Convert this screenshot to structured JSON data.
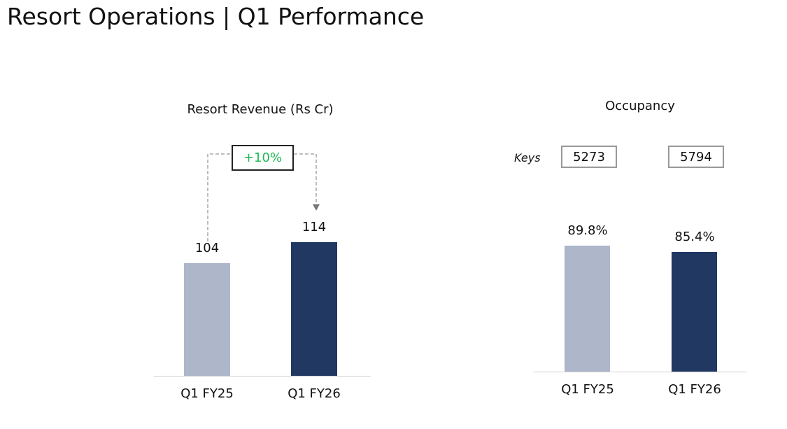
{
  "title": "Resort Operations | Q1 Performance",
  "chart_data": [
    {
      "type": "bar",
      "title": "Resort Revenue (Rs Cr)",
      "categories": [
        "Q1 FY25",
        "Q1 FY26"
      ],
      "values": [
        104,
        114
      ],
      "value_labels": [
        "104",
        "114"
      ],
      "colors": [
        "#adb7c9",
        "#213862"
      ],
      "ylim": [
        50,
        120
      ],
      "annotation": {
        "label": "+10%",
        "color": "#1db954",
        "from": "Q1 FY25",
        "to": "Q1 FY26"
      }
    },
    {
      "type": "bar",
      "title": "Occupancy",
      "categories": [
        "Q1 FY25",
        "Q1 FY26"
      ],
      "values": [
        89.8,
        85.4
      ],
      "value_labels": [
        "89.8%",
        "85.4%"
      ],
      "colors": [
        "#adb7c9",
        "#213862"
      ],
      "ylim": [
        0,
        100
      ],
      "keys_label": "Keys",
      "keys": [
        "5273",
        "5794"
      ]
    }
  ]
}
